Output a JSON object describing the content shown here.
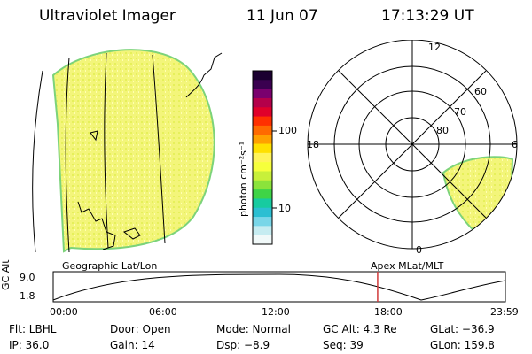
{
  "header": {
    "instrument": "Ultraviolet Imager",
    "date": "11 Jun 07",
    "time": "17:13:29 UT"
  },
  "colorbar": {
    "unit_label": "photon cm⁻²s⁻¹",
    "ticks": [
      "100",
      "10"
    ],
    "colors": [
      "#1b0030",
      "#3a0050",
      "#7a006e",
      "#b4004a",
      "#e0002a",
      "#ff3000",
      "#ff6a00",
      "#ffa000",
      "#ffe000",
      "#fff45a",
      "#f6ff3c",
      "#c8f03a",
      "#8be33b",
      "#3fd447",
      "#17cba0",
      "#2bbfd2",
      "#79d6e8",
      "#c6ecf1",
      "#f1f9f9"
    ]
  },
  "polar": {
    "mlt_labels": [
      "12",
      "18",
      "6",
      "0"
    ],
    "lat_labels": [
      "60",
      "70",
      "80"
    ]
  },
  "timeline": {
    "left_title": "Geographic Lat/Lon",
    "right_title": "Apex  MLat/MLT",
    "axis_label": "GC Alt",
    "y_ticks": [
      "9.0",
      "1.8"
    ],
    "x_ticks": [
      "00:00",
      "06:00",
      "12:00",
      "18:00",
      "23:59"
    ],
    "current_time_hours": 17.22,
    "marker_color": "#d03a3a"
  },
  "footer": {
    "flt": "Flt:  LBHL",
    "door": "Door:  Open",
    "mode": "Mode:  Normal",
    "gc_alt": "GC Alt:  4.3 Re",
    "glat": "GLat:  −36.9",
    "ip": "IP:  36.0",
    "gain": "Gain:  14",
    "dsp": "Dsp:    −8.9",
    "seq": "Seq:  39",
    "glon": "GLon:  159.8"
  }
}
